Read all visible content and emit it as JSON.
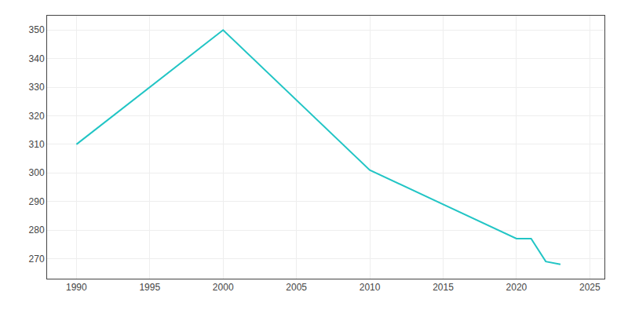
{
  "chart_data": {
    "type": "line",
    "x": [
      1990,
      2000,
      2010,
      2020,
      2021,
      2022,
      2023
    ],
    "values": [
      310,
      350,
      301,
      277,
      277,
      269,
      268
    ],
    "color": "#22C5C5",
    "xlim": [
      1988,
      2026
    ],
    "ylim": [
      263,
      355
    ],
    "xticks": [
      1990,
      1995,
      2000,
      2005,
      2010,
      2015,
      2020,
      2025
    ],
    "yticks": [
      270,
      280,
      290,
      300,
      310,
      320,
      330,
      340,
      350
    ],
    "grid": true
  }
}
